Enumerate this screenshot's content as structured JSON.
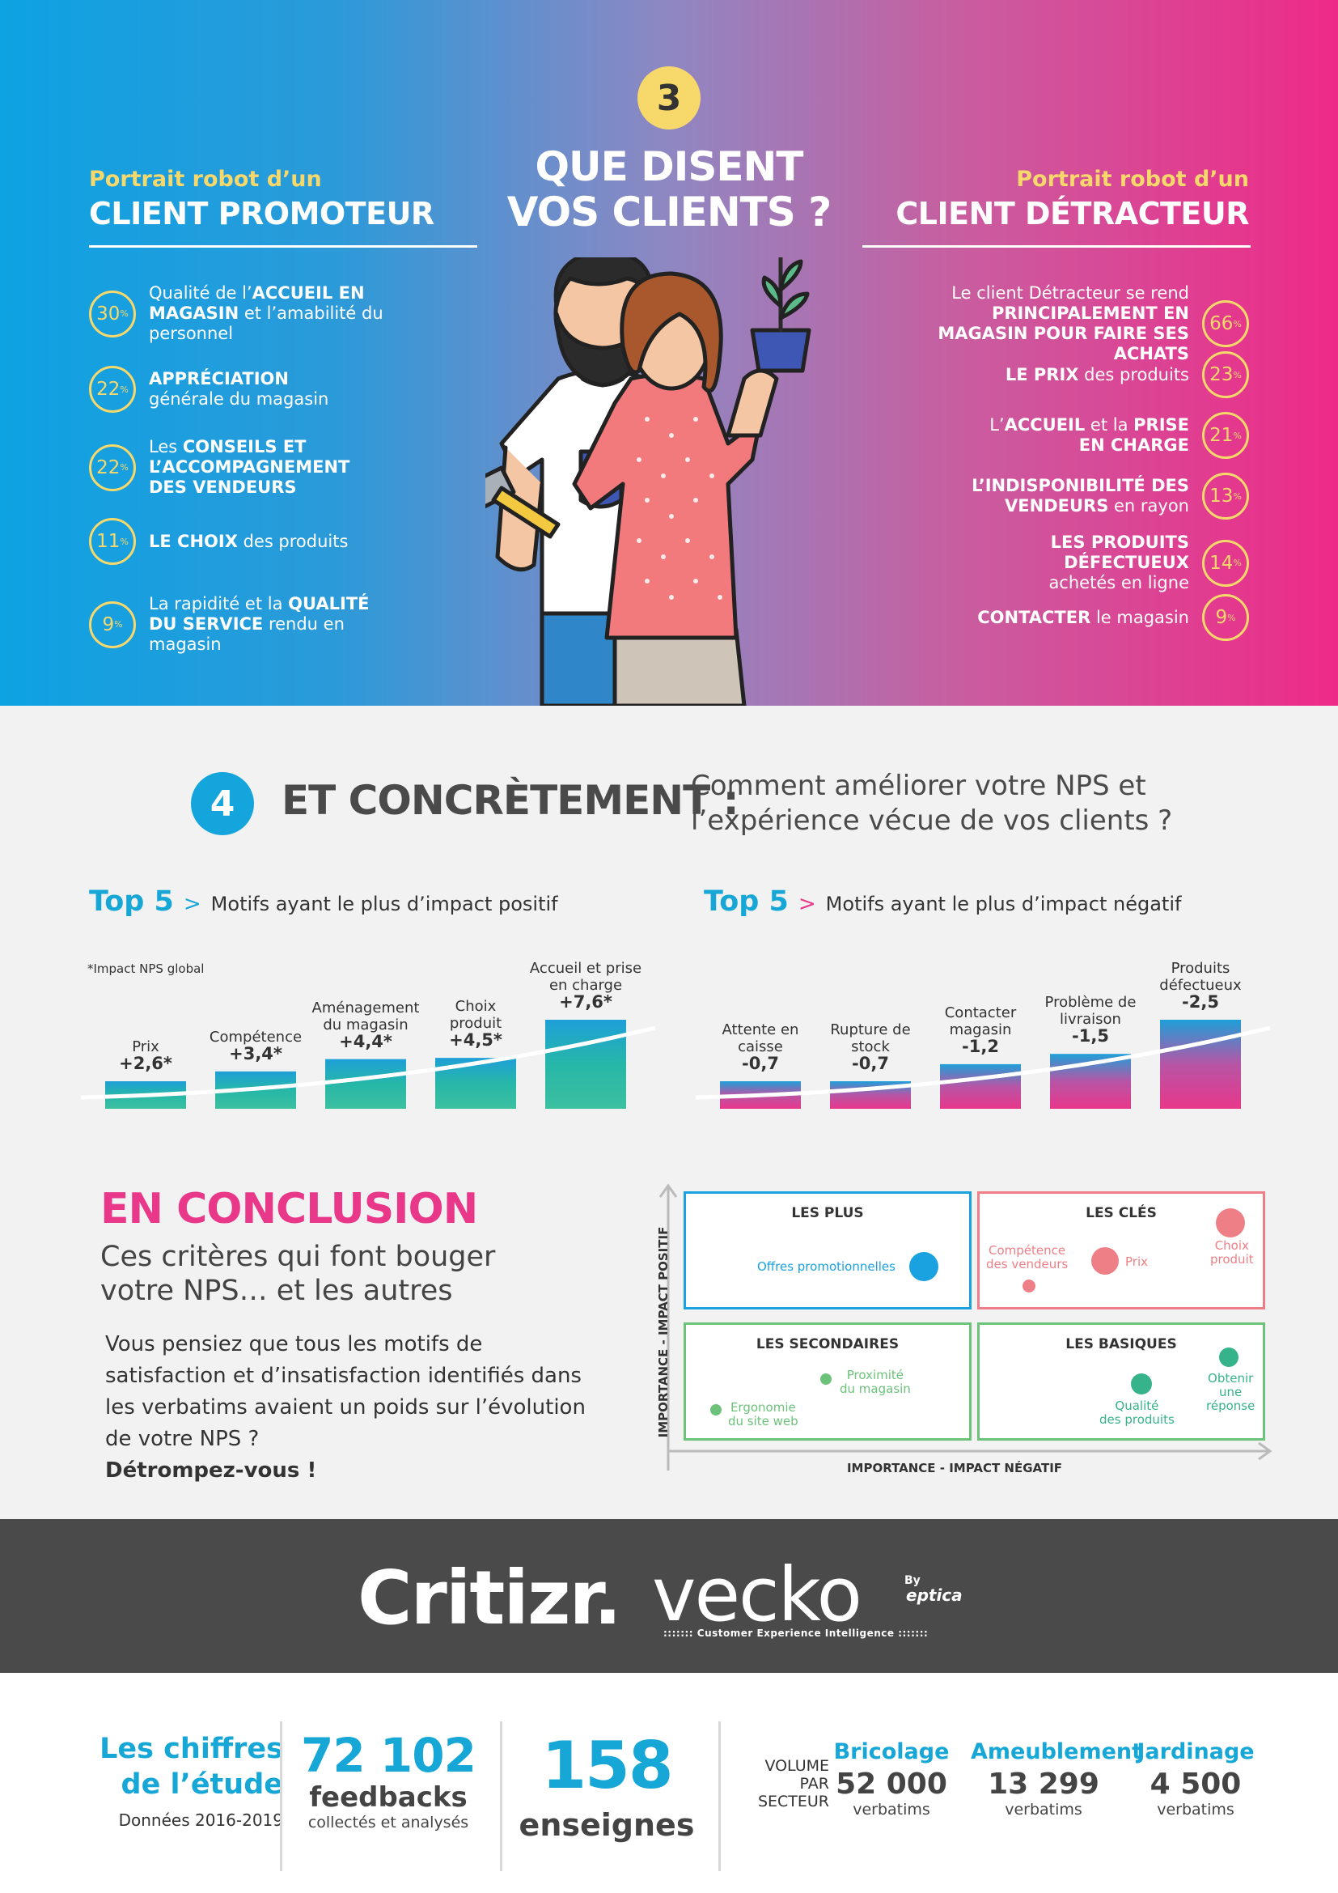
{
  "section3": {
    "step": "3",
    "title_line1": "QUE DISENT",
    "title_line2": "VOS CLIENTS ?",
    "promoter": {
      "subtitle": "Portrait robot d’un",
      "title": "CLIENT PROMOTEUR",
      "items": [
        {
          "pct": "30",
          "pre": "Qualité de l’",
          "bold": "ACCUEIL EN MAGASIN",
          "post": " et l’amabilité du personnel"
        },
        {
          "pct": "22",
          "pre": "",
          "bold": "APPRÉCIATION",
          "post": " générale du magasin"
        },
        {
          "pct": "22",
          "pre": "Les ",
          "bold": "CONSEILS ET L’ACCOMPAGNEMENT DES VENDEURS",
          "post": ""
        },
        {
          "pct": "11",
          "pre": "",
          "bold": "LE CHOIX",
          "post": " des produits"
        },
        {
          "pct": "9",
          "pre": "La rapidité et la ",
          "bold": "QUALITÉ DU SERVICE",
          "post": " rendu en magasin"
        }
      ]
    },
    "detractor": {
      "subtitle": "Portrait robot d’un",
      "title": "CLIENT DÉTRACTEUR",
      "items": [
        {
          "pct": "66",
          "pre": "Le client Détracteur se rend ",
          "bold": "PRINCIPALEMENT EN MAGASIN POUR FAIRE SES ACHATS",
          "post": ""
        },
        {
          "pct": "23",
          "pre": "",
          "bold": "LE PRIX",
          "post": " des produits"
        },
        {
          "pct": "21",
          "pre": "L’",
          "bold": "ACCUEIL",
          "post": " et la ",
          "bold2": "PRISE EN CHARGE"
        },
        {
          "pct": "13",
          "pre": "",
          "bold": "L’INDISPONIBILITÉ DES VENDEURS",
          "post": " en rayon"
        },
        {
          "pct": "14",
          "pre": "",
          "bold": "LES PRODUITS DÉFECTUEUX",
          "post": " achetés en ligne"
        },
        {
          "pct": "9",
          "pre": "",
          "bold": "CONTACTER",
          "post": " le magasin"
        }
      ]
    },
    "pct_suffix": "%"
  },
  "section4": {
    "step": "4",
    "title": "ET CONCRÈTEMENT :",
    "subtitle_line1": "Comment améliorer votre NPS et",
    "subtitle_line2": "l’expérience vécue de vos clients ?",
    "top5_label": "Top 5",
    "top5_arrow": ">",
    "positive_title": "Motifs ayant le plus d’impact positif",
    "negative_title": "Motifs ayant le plus d’impact négatif",
    "impact_note": "*Impact NPS global"
  },
  "chart_data": [
    {
      "type": "bar",
      "title": "Motifs ayant le plus d’impact positif",
      "categories": [
        "Prix",
        "Compétence",
        "Aménagement du magasin",
        "Choix produit",
        "Accueil et prise en charge"
      ],
      "values": [
        2.6,
        3.4,
        4.4,
        4.5,
        7.6
      ],
      "value_labels": [
        "+2,6*",
        "+3,4*",
        "+4,4*",
        "+4,5*",
        "+7,6*"
      ],
      "label_lines": [
        [
          "Prix"
        ],
        [
          "Compétence"
        ],
        [
          "Aménagement",
          "du magasin"
        ],
        [
          "Choix",
          "produit"
        ],
        [
          "Accueil et prise",
          "en charge"
        ]
      ],
      "color": "#1fb3b0"
    },
    {
      "type": "bar",
      "title": "Motifs ayant le plus d’impact négatif",
      "categories": [
        "Attente en caisse",
        "Rupture de stock",
        "Contacter magasin",
        "Problème de livraison",
        "Produits défectueux"
      ],
      "values": [
        -0.7,
        -0.7,
        -1.2,
        -1.5,
        -2.5
      ],
      "value_labels": [
        "-0,7",
        "-0,7",
        "-1,2",
        "-1,5",
        "-2,5"
      ],
      "label_lines": [
        [
          "Attente en",
          "caisse"
        ],
        [
          "Rupture de",
          "stock"
        ],
        [
          "Contacter",
          "magasin"
        ],
        [
          "Problème de",
          "livraison"
        ],
        [
          "Produits",
          "défectueux"
        ]
      ],
      "color": "#e9378a"
    }
  ],
  "conclusion": {
    "title": "EN CONCLUSION",
    "subtitle_line1": "Ces critères qui font bouger",
    "subtitle_line2": "votre NPS… et les autres",
    "body": "Vous pensiez que tous les motifs de satisfaction et d’insatisfaction identifiés dans les verbatims avaient un poids sur l’évolution de votre NPS ?",
    "body_bold": "Détrompez-vous !"
  },
  "matrix": {
    "y_axis": "IMPORTANCE - IMPACT POSITIF",
    "x_axis": "IMPORTANCE - IMPACT NÉGATIF",
    "quadrants": {
      "plus": {
        "title": "LES PLUS",
        "color": "#1aa1e0",
        "items": [
          {
            "label": "Offres promotionnelles"
          }
        ]
      },
      "cles": {
        "title": "LES CLÉS",
        "color": "#ef7f86",
        "items": [
          {
            "label": "Compétence des vendeurs"
          },
          {
            "label": "Prix"
          },
          {
            "label": "Choix produit"
          }
        ]
      },
      "secondaires": {
        "title": "LES SECONDAIRES",
        "color": "#6cc27a",
        "items": [
          {
            "label": "Ergonomie du site web"
          },
          {
            "label": "Proximité du magasin"
          }
        ]
      },
      "basiques": {
        "title": "LES BASIQUES",
        "color": "#36b38a",
        "items": [
          {
            "label": "Qualité des produits"
          },
          {
            "label": "Obtenir une réponse"
          }
        ]
      }
    },
    "label_lines": {
      "competence": [
        "Compétence",
        "des vendeurs"
      ],
      "choix": [
        "Choix",
        "produit"
      ],
      "ergonomie": [
        "Ergonomie",
        "du site web"
      ],
      "proximite": [
        "Proximité",
        "du magasin"
      ],
      "qualite": [
        "Qualité",
        "des produits"
      ],
      "reponse": [
        "Obtenir",
        "une",
        "réponse"
      ]
    }
  },
  "logos": {
    "critizr": "Critizr.",
    "vecko": "vecko",
    "by": "By",
    "eptica": "eptica",
    "tagline": ":::::::  Customer Experience Intelligence  :::::::"
  },
  "figures": {
    "title_line1": "Les chiffres",
    "title_line2": "de l’étude",
    "years": "Données 2016-2019",
    "feedbacks_number": "72 102",
    "feedbacks_label": "feedbacks",
    "feedbacks_sub": "collectés et analysés",
    "enseignes_number": "158",
    "enseignes_label": "enseignes",
    "volume_line1": "VOLUME",
    "volume_line2": "PAR",
    "volume_line3": "SECTEUR",
    "sectors": [
      {
        "name": "Bricolage",
        "value": "52 000",
        "unit": "verbatims"
      },
      {
        "name": "Ameublement",
        "value": "13 299",
        "unit": "verbatims"
      },
      {
        "name": "Jardinage",
        "value": "4 500",
        "unit": "verbatims"
      }
    ]
  }
}
